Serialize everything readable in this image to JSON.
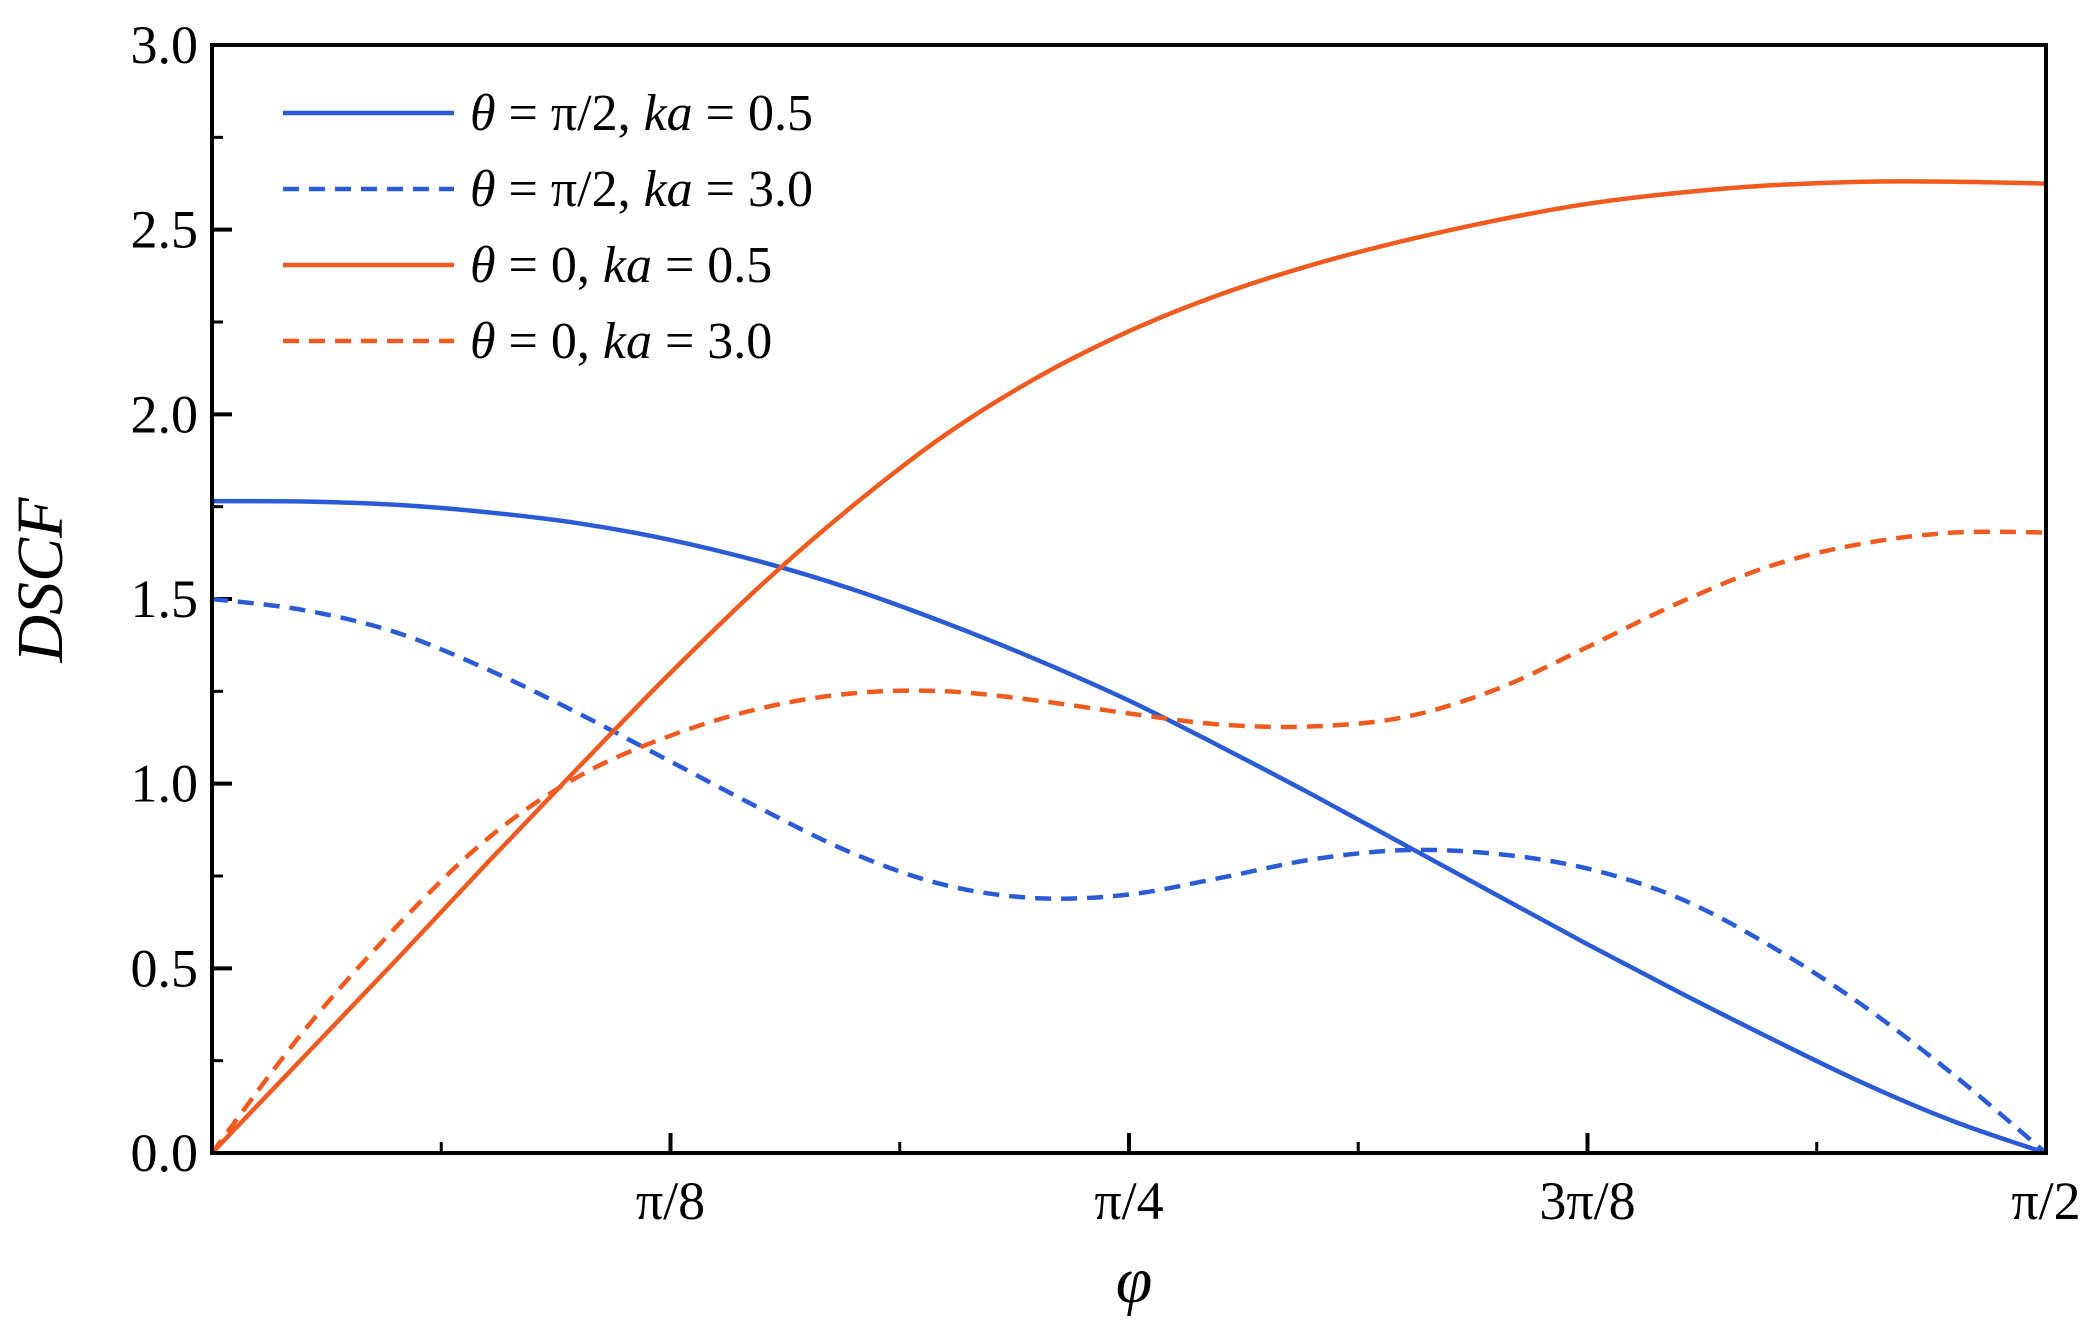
{
  "chart_data": {
    "type": "line",
    "title": "",
    "xlabel": "φ",
    "ylabel": "DSCF",
    "xlim": [
      0,
      1.5707963
    ],
    "ylim": [
      0,
      3.0
    ],
    "grid": false,
    "legend_position": "top-left",
    "x_ticks": [
      {
        "value": 0.3926991,
        "label": "π/8"
      },
      {
        "value": 0.7853982,
        "label": "π/4"
      },
      {
        "value": 1.1780972,
        "label": "3π/8"
      },
      {
        "value": 1.5707963,
        "label": "π/2"
      }
    ],
    "y_ticks": [
      {
        "value": 0.0,
        "label": "0.0"
      },
      {
        "value": 0.5,
        "label": "0.5"
      },
      {
        "value": 1.0,
        "label": "1.0"
      },
      {
        "value": 1.5,
        "label": "1.5"
      },
      {
        "value": 2.0,
        "label": "2.0"
      },
      {
        "value": 2.5,
        "label": "2.5"
      },
      {
        "value": 3.0,
        "label": "3.0"
      }
    ],
    "x": [
      0,
      0.0785,
      0.1571,
      0.2356,
      0.3142,
      0.3927,
      0.4712,
      0.5498,
      0.6283,
      0.7069,
      0.7854,
      0.8639,
      0.9425,
      1.021,
      1.0996,
      1.1781,
      1.2566,
      1.3352,
      1.4137,
      1.4923,
      1.5708
    ],
    "series": [
      {
        "name": "θ = π/2, ka = 0.5",
        "theta": "θ",
        "theta_value": "= π/2,",
        "ka": "ka",
        "ka_value": "= 0.5",
        "color": "#2a5bd7",
        "dash": "solid",
        "values": [
          1.765,
          1.764,
          1.755,
          1.735,
          1.705,
          1.66,
          1.6,
          1.525,
          1.435,
          1.335,
          1.225,
          1.1,
          0.97,
          0.835,
          0.7,
          0.565,
          0.435,
          0.31,
          0.19,
          0.085,
          0.0
        ]
      },
      {
        "name": "θ = π/2, ka = 3.0",
        "theta": "θ",
        "theta_value": "= π/2,",
        "ka": "ka",
        "ka_value": "= 3.0",
        "color": "#2a5bd7",
        "dash": "dashed",
        "values": [
          1.5,
          1.47,
          1.41,
          1.31,
          1.19,
          1.06,
          0.93,
          0.81,
          0.725,
          0.69,
          0.7,
          0.745,
          0.795,
          0.82,
          0.81,
          0.77,
          0.69,
          0.56,
          0.4,
          0.21,
          0.0
        ]
      },
      {
        "name": "θ = 0, ka = 0.5",
        "theta": "θ",
        "theta_value": "= 0,",
        "ka": "ka",
        "ka_value": "= 0.5",
        "color": "#f05a1e",
        "dash": "solid",
        "values": [
          0.0,
          0.26,
          0.52,
          0.785,
          1.045,
          1.3,
          1.54,
          1.755,
          1.945,
          2.1,
          2.225,
          2.325,
          2.405,
          2.47,
          2.525,
          2.57,
          2.6,
          2.62,
          2.63,
          2.63,
          2.625
        ]
      },
      {
        "name": "θ = 0, ka = 3.0",
        "theta": "θ",
        "theta_value": "= 0,",
        "ka": "ka",
        "ka_value": "= 3.0",
        "color": "#f05a1e",
        "dash": "dashed",
        "values": [
          0.0,
          0.33,
          0.61,
          0.85,
          1.02,
          1.13,
          1.205,
          1.245,
          1.25,
          1.225,
          1.19,
          1.16,
          1.155,
          1.18,
          1.255,
          1.37,
          1.49,
          1.59,
          1.65,
          1.68,
          1.68
        ]
      }
    ]
  }
}
